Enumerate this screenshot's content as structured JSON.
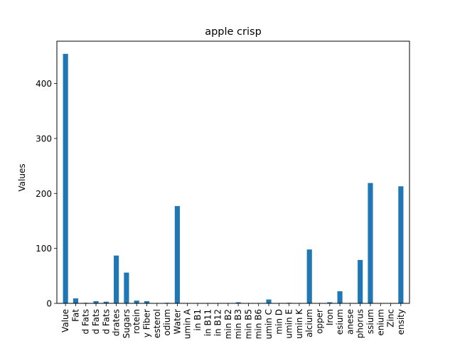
{
  "chart_data": {
    "type": "bar",
    "title": "apple crisp",
    "xlabel": "",
    "ylabel": "Values",
    "ylim": [
      0,
      477
    ],
    "yticks": [
      0,
      100,
      200,
      300,
      400
    ],
    "grid": false,
    "legend": "none",
    "bar_color": "#1f77b4",
    "categories": [
      "Value",
      "Fat",
      "d Fats",
      "d Fats",
      "d Fats",
      "drates",
      "Sugars",
      "rotein",
      "y Fiber",
      "esterol",
      "odium",
      "Water",
      "umin A",
      "in B1",
      "in B11",
      "in B12",
      "min B2",
      "min B3",
      "min B5",
      "min B6",
      "umin C",
      "min D",
      "umin E",
      "umin K",
      "alcium",
      "opper",
      "Iron",
      "esium",
      "anese",
      "phorus",
      "ssium",
      "enium",
      "Zinc",
      "ensity"
    ],
    "values": [
      454,
      9,
      1,
      4,
      3,
      87,
      56,
      5,
      4,
      0,
      1,
      177,
      0,
      0,
      0,
      0,
      0,
      2,
      0,
      0,
      7,
      0,
      1,
      0,
      98,
      0,
      2,
      22,
      0,
      79,
      219,
      0,
      0,
      213
    ]
  }
}
